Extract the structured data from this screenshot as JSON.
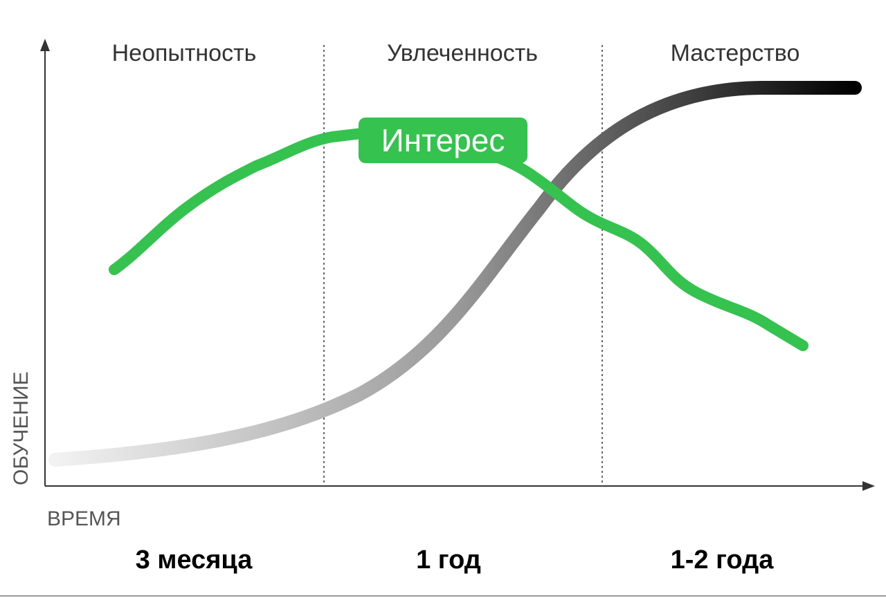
{
  "axes": {
    "y_label": "ОБУЧЕНИЕ",
    "x_label": "ВРЕМЯ"
  },
  "phases": [
    "Неопытность",
    "Увлеченность",
    "Мастерство"
  ],
  "durations": [
    "3 месяца",
    "1 год",
    "1-2 года"
  ],
  "curve_label": "Интерес"
}
